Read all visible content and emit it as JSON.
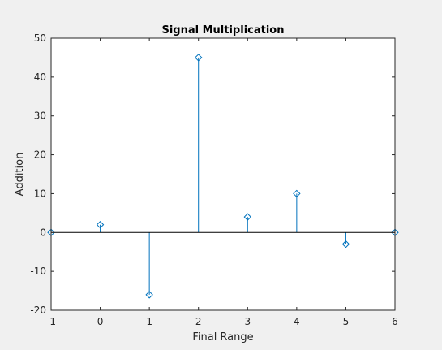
{
  "chart_data": {
    "type": "stem",
    "title": "Signal Multiplication",
    "xlabel": "Final Range",
    "ylabel": "Addition",
    "xlim": [
      -1,
      6
    ],
    "ylim": [
      -20,
      50
    ],
    "xticks": [
      -1,
      0,
      1,
      2,
      3,
      4,
      5,
      6
    ],
    "yticks": [
      -20,
      -10,
      0,
      10,
      20,
      30,
      40,
      50
    ],
    "x": [
      -1,
      0,
      1,
      2,
      3,
      4,
      5,
      6
    ],
    "values": [
      0,
      2,
      -16,
      45,
      4,
      10,
      -3,
      0
    ],
    "grid": false,
    "baseline": 0,
    "colors": {
      "stem": "#0072bd",
      "axis": "#262626",
      "background": "#ffffff",
      "figure": "#f0f0f0"
    }
  }
}
